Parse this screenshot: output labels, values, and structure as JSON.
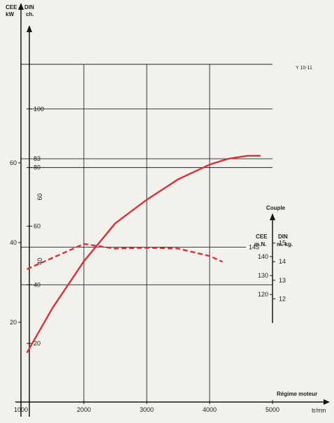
{
  "figure_ref": "Y 10-11",
  "axes": {
    "power_kw_unit": "CEE",
    "power_kw_unit2": "kW",
    "power_ch_unit": "DIN",
    "power_ch_unit2": "ch.",
    "torque_title": "Couple",
    "torque_nm_unit": "CEE",
    "torque_nm_unit2": "m.N.",
    "torque_mkg_unit": "DIN",
    "torque_mkg_unit2": "m. kg.",
    "x_title": "Régime moteur",
    "x_unit": "tr/mn"
  },
  "colors": {
    "power_curve": "#d6313a",
    "torque_curve": "#d6313a",
    "axis": "#151515",
    "grid": "#222222"
  },
  "chart_data": {
    "type": "line",
    "x_label": "Régime moteur",
    "x_unit": "tr/mn",
    "x_ticks": [
      "1000",
      "2000",
      "3000",
      "4000",
      "5000"
    ],
    "xlim": [
      1000,
      5000
    ],
    "y_power_kw_ticks": [
      "20",
      "40",
      "60"
    ],
    "y_power_ch_ticks": [
      "20",
      "40",
      "60",
      "80",
      "100"
    ],
    "y_power_ch_ticks_rotated": [
      "40",
      "60"
    ],
    "y_power_ch_range": [
      0,
      130
    ],
    "max_power_ch_label": "83",
    "torque_nm_ticks": [
      "120",
      "130",
      "140",
      "145"
    ],
    "torque_mkg_ticks": [
      "12",
      "13",
      "14",
      "15"
    ],
    "torque_mkg_range": [
      11,
      16
    ],
    "max_torque_nm_label": "145",
    "series": [
      {
        "style": "solid",
        "unit": "ch DIN",
        "x": [
          1100,
          1500,
          2000,
          2500,
          3000,
          3500,
          4000,
          4300,
          4600,
          4800
        ],
        "values": [
          17,
          32,
          48,
          61,
          69,
          76,
          81,
          83,
          84,
          84
        ]
      },
      {
        "style": "dashed",
        "unit": "m.kg DIN",
        "x": [
          1100,
          1500,
          2000,
          2500,
          3000,
          3500,
          4000,
          4200
        ],
        "values": [
          13.6,
          14.2,
          14.95,
          14.7,
          14.75,
          14.7,
          14.3,
          14.0
        ]
      }
    ]
  }
}
